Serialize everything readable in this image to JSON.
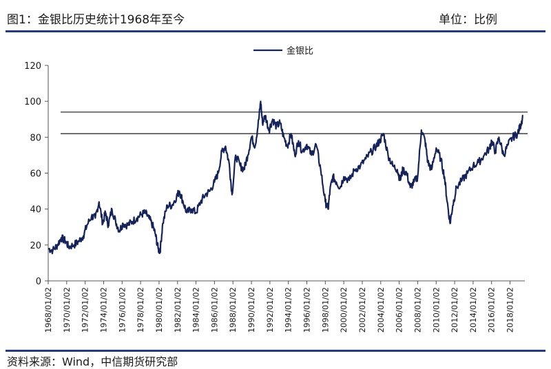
{
  "header": {
    "title": "图1：金银比历史统计1968年至今",
    "unit": "单位：比例"
  },
  "footer": {
    "source": "资料来源：Wind，中信期货研究部"
  },
  "colors": {
    "series": "#15235c",
    "rule": "#1f3a8a"
  },
  "chart_data": {
    "type": "line",
    "title": "图1：金银比历史统计1968年至今",
    "unit_label": "单位：比例",
    "legend": [
      "金银比"
    ],
    "legend_position": "top-center",
    "grid": false,
    "ylim": [
      0,
      120
    ],
    "yticks": [
      0,
      20,
      40,
      60,
      80,
      100,
      120
    ],
    "xlim": [
      1968.0,
      2019.6
    ],
    "xticks": [
      "1968/01/02",
      "1970/01/02",
      "1972/01/02",
      "1974/01/02",
      "1976/01/02",
      "1978/01/02",
      "1980/01/02",
      "1982/01/02",
      "1984/01/02",
      "1986/01/02",
      "1988/01/02",
      "1990/01/02",
      "1992/01/02",
      "1994/01/02",
      "1996/01/02",
      "1998/01/02",
      "2000/01/02",
      "2002/01/02",
      "2004/01/02",
      "2006/01/02",
      "2008/01/02",
      "2010/01/02",
      "2012/01/02",
      "2014/01/02",
      "2016/01/02",
      "2018/01/02"
    ],
    "reference_lines": [
      94,
      82
    ],
    "series": [
      {
        "name": "金银比",
        "x": [
          1968.0,
          1968.5,
          1969.0,
          1969.4,
          1969.9,
          1970.2,
          1970.8,
          1971.3,
          1971.8,
          1972.2,
          1972.7,
          1973.1,
          1973.5,
          1973.9,
          1974.2,
          1974.5,
          1974.9,
          1975.3,
          1975.7,
          1976.1,
          1976.6,
          1977.1,
          1977.6,
          1978.1,
          1978.5,
          1978.9,
          1979.3,
          1979.6,
          1979.9,
          1980.1,
          1980.4,
          1980.9,
          1981.4,
          1981.9,
          1982.2,
          1982.6,
          1983.0,
          1983.5,
          1984.0,
          1984.5,
          1985.0,
          1985.5,
          1986.0,
          1986.4,
          1986.8,
          1987.2,
          1987.6,
          1987.9,
          1988.3,
          1988.8,
          1989.2,
          1989.6,
          1990.0,
          1990.4,
          1990.8,
          1991.0,
          1991.2,
          1991.5,
          1991.9,
          1992.3,
          1992.7,
          1993.1,
          1993.5,
          1993.9,
          1994.3,
          1994.7,
          1995.1,
          1995.5,
          1996.0,
          1996.5,
          1997.0,
          1997.5,
          1998.0,
          1998.3,
          1998.5,
          1998.8,
          1999.2,
          1999.6,
          2000.0,
          2000.6,
          2001.2,
          2001.8,
          2002.4,
          2003.0,
          2003.5,
          2003.9,
          2004.3,
          2004.8,
          2005.3,
          2005.8,
          2006.1,
          2006.4,
          2006.8,
          2007.2,
          2007.6,
          2008.0,
          2008.4,
          2008.8,
          2009.1,
          2009.5,
          2010.0,
          2010.5,
          2010.9,
          2011.2,
          2011.5,
          2011.8,
          2012.2,
          2012.8,
          2013.4,
          2014.0,
          2014.6,
          2015.2,
          2015.8,
          2016.0,
          2016.4,
          2016.8,
          2017.3,
          2017.8,
          2018.3,
          2018.8,
          2019.1,
          2019.4
        ],
        "values": [
          18,
          17,
          20,
          24,
          22,
          19,
          20,
          22,
          25,
          31,
          36,
          35,
          44,
          32,
          38,
          31,
          40,
          33,
          28,
          32,
          31,
          33,
          35,
          37,
          38,
          35,
          31,
          26,
          18,
          16,
          32,
          42,
          42,
          47,
          50,
          44,
          38,
          40,
          38,
          44,
          48,
          50,
          55,
          60,
          72,
          75,
          65,
          48,
          70,
          64,
          62,
          70,
          80,
          75,
          90,
          100,
          88,
          92,
          84,
          90,
          86,
          88,
          80,
          75,
          82,
          70,
          78,
          72,
          76,
          70,
          76,
          62,
          44,
          40,
          50,
          58,
          55,
          52,
          58,
          56,
          62,
          64,
          68,
          72,
          75,
          78,
          82,
          70,
          64,
          62,
          56,
          62,
          60,
          52,
          55,
          58,
          84,
          78,
          66,
          62,
          74,
          68,
          58,
          44,
          32,
          42,
          52,
          56,
          60,
          64,
          66,
          70,
          74,
          78,
          72,
          80,
          70,
          76,
          80,
          82,
          86,
          92
        ]
      }
    ]
  }
}
